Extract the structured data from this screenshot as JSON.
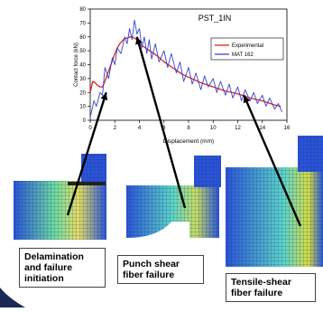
{
  "chart_data": {
    "type": "line",
    "title": "PST_1IN",
    "xlabel": "Displacement (mm)",
    "ylabel": "Contact force (kN)",
    "xlim": [
      0,
      16
    ],
    "ylim": [
      0,
      80
    ],
    "xticks": [
      "0",
      "2",
      "4",
      "6",
      "8",
      "10",
      "12",
      "14",
      "16"
    ],
    "yticks": [
      "0",
      "10",
      "20",
      "30",
      "40",
      "50",
      "60",
      "70",
      "80"
    ],
    "grid": false,
    "legend": "top-right",
    "series": [
      {
        "name": "Experimental",
        "color": "#e02020",
        "x": [
          0,
          0.2,
          0.4,
          0.6,
          0.8,
          1.0,
          1.2,
          1.4,
          1.6,
          1.8,
          2.0,
          2.2,
          2.4,
          2.6,
          2.8,
          3.0,
          3.2,
          3.4,
          3.6,
          3.8,
          4.0,
          4.5,
          5,
          5.5,
          6,
          6.5,
          7,
          7.5,
          8,
          9,
          10,
          11,
          12,
          13,
          14,
          15,
          15.5
        ],
        "y": [
          20,
          28,
          27,
          25,
          24,
          24,
          28,
          33,
          38,
          43,
          48,
          52,
          55,
          57,
          59,
          59,
          60,
          60,
          59,
          58,
          55,
          52,
          49,
          46,
          42,
          39,
          36,
          33,
          31,
          27,
          24,
          21,
          19,
          16,
          14,
          11,
          10
        ]
      },
      {
        "name": "MAT 162",
        "color": "#3344cc",
        "x": [
          0,
          0.3,
          0.5,
          0.8,
          1.0,
          1.2,
          1.5,
          1.8,
          2.0,
          2.2,
          2.5,
          2.8,
          3.0,
          3.2,
          3.4,
          3.6,
          3.8,
          4.0,
          4.2,
          4.4,
          4.6,
          4.8,
          5.0,
          5.3,
          5.6,
          6.0,
          6.3,
          6.6,
          7.0,
          7.3,
          7.6,
          8.0,
          8.3,
          8.6,
          9.0,
          9.3,
          9.6,
          10.0,
          10.3,
          10.6,
          11.0,
          11.3,
          11.6,
          12.0,
          12.3,
          12.6,
          13.0,
          13.3,
          13.6,
          14.0,
          14.3,
          14.6,
          15.0,
          15.3,
          15.6
        ],
        "y": [
          2,
          14,
          10,
          20,
          18,
          38,
          30,
          45,
          40,
          52,
          48,
          60,
          55,
          66,
          58,
          72,
          62,
          66,
          52,
          60,
          48,
          58,
          44,
          55,
          42,
          50,
          38,
          48,
          34,
          42,
          28,
          38,
          26,
          34,
          22,
          32,
          24,
          30,
          20,
          28,
          18,
          26,
          16,
          24,
          14,
          22,
          14,
          20,
          12,
          18,
          10,
          16,
          8,
          12,
          6
        ]
      }
    ],
    "annotations": [
      {
        "lines": [
          "Delamination",
          "and failure",
          "initiation"
        ],
        "x": 1.3,
        "y": 20
      },
      {
        "lines": [
          "Punch  shear",
          "fiber failure"
        ],
        "x": 3.8,
        "y": 60
      },
      {
        "lines": [
          "Tensile-shear",
          "fiber failure"
        ],
        "x": 12.5,
        "y": 18
      }
    ]
  }
}
